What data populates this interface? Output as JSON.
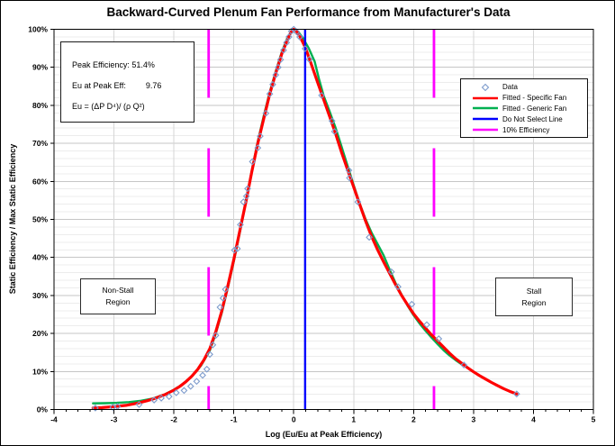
{
  "chart_data": {
    "type": "line",
    "title": "Backward-Curved Plenum Fan Performance from Manufacturer's Data",
    "xlabel": "Log (Eu/Eu at Peak Efficiency)",
    "ylabel": "Static Efficiency / Max Static Efficiency",
    "xlim": [
      -4,
      5
    ],
    "ylim_pct": [
      0,
      100
    ],
    "x_ticks": [
      -4,
      -3,
      -2,
      -1,
      0,
      1,
      2,
      3,
      4,
      5
    ],
    "y_ticks_pct": [
      "0%",
      "10%",
      "20%",
      "30%",
      "40%",
      "50%",
      "60%",
      "70%",
      "80%",
      "90%",
      "100%"
    ],
    "grid": {
      "major_y_step_pct": 10,
      "minor_y_step_pct": 2,
      "major_x_step": 1,
      "legend_position": "right-inside"
    },
    "colors": {
      "specific_fan": "#FF0000",
      "generic_fan": "#00B050",
      "do_not_select": "#0000FF",
      "efficiency_10pct": "#FF00FF",
      "data_marker": "#7D9BCC",
      "major_grid": "#C6C6C6",
      "minor_grid": "#ECECEC",
      "vertical_grid": "#D6D6D6",
      "plot_border": "#000000"
    },
    "legend": {
      "entries": [
        {
          "label": "Data",
          "type": "marker",
          "color": "#7D9BCC"
        },
        {
          "label": "Fitted - Specific Fan",
          "type": "line",
          "color": "#FF0000"
        },
        {
          "label": "Fitted - Generic Fan",
          "type": "line",
          "color": "#00B050"
        },
        {
          "label": "Do Not Select Line",
          "type": "line",
          "color": "#0000FF"
        },
        {
          "label": "10% Efficiency",
          "type": "line",
          "color": "#FF00FF"
        }
      ]
    },
    "vertical_lines": {
      "do_not_select_x": 0.19,
      "efficiency_10pct_x": [
        -1.42,
        2.34
      ]
    },
    "series": {
      "data_points": [
        [
          -3.31,
          0.4
        ],
        [
          -3.02,
          0.6
        ],
        [
          -2.94,
          0.8
        ],
        [
          -2.58,
          1.3
        ],
        [
          -2.33,
          2.5
        ],
        [
          -2.21,
          3.0
        ],
        [
          -2.08,
          3.4
        ],
        [
          -1.96,
          4.4
        ],
        [
          -1.83,
          5.0
        ],
        [
          -1.72,
          6.1
        ],
        [
          -1.62,
          7.4
        ],
        [
          -1.52,
          9.0
        ],
        [
          -1.45,
          10.6
        ],
        [
          -1.4,
          14.5
        ],
        [
          -1.35,
          17.0
        ],
        [
          -1.3,
          19.5
        ],
        [
          -1.23,
          26.9
        ],
        [
          -1.18,
          29.3
        ],
        [
          -1.14,
          31.6
        ],
        [
          -0.99,
          41.9
        ],
        [
          -0.94,
          42.3
        ],
        [
          -0.89,
          48.6
        ],
        [
          -0.84,
          54.6
        ],
        [
          -0.79,
          56.1
        ],
        [
          -0.77,
          58.1
        ],
        [
          -0.69,
          65.2
        ],
        [
          -0.6,
          68.8
        ],
        [
          -0.56,
          71.9
        ],
        [
          -0.465,
          77.9
        ],
        [
          -0.4,
          83.0
        ],
        [
          -0.35,
          85.5
        ],
        [
          -0.3,
          88.0
        ],
        [
          -0.26,
          90.0
        ],
        [
          -0.22,
          92.0
        ],
        [
          -0.17,
          94.5
        ],
        [
          -0.12,
          96.5
        ],
        [
          -0.08,
          98.0
        ],
        [
          -0.04,
          99.5
        ],
        [
          0.0,
          100.0
        ],
        [
          0.05,
          99.3
        ],
        [
          0.1,
          98.0
        ],
        [
          0.19,
          94.9
        ],
        [
          0.26,
          92.1
        ],
        [
          0.465,
          82.6
        ],
        [
          0.64,
          75.9
        ],
        [
          0.68,
          73.1
        ],
        [
          0.92,
          62.9
        ],
        [
          0.93,
          60.9
        ],
        [
          1.07,
          54.6
        ],
        [
          1.26,
          45.3
        ],
        [
          1.63,
          36.2
        ],
        [
          1.74,
          32.3
        ],
        [
          1.97,
          27.7
        ],
        [
          2.22,
          22.3
        ],
        [
          2.42,
          18.6
        ],
        [
          2.84,
          11.7
        ],
        [
          3.72,
          4.1
        ]
      ],
      "fitted_specific_fan": [
        [
          -3.35,
          0.4
        ],
        [
          -3.2,
          0.5
        ],
        [
          -3.0,
          0.75
        ],
        [
          -2.8,
          1.1
        ],
        [
          -2.6,
          1.7
        ],
        [
          -2.45,
          2.3
        ],
        [
          -2.3,
          3.0
        ],
        [
          -2.15,
          3.9
        ],
        [
          -2.0,
          5.1
        ],
        [
          -1.9,
          6.1
        ],
        [
          -1.8,
          7.3
        ],
        [
          -1.7,
          8.8
        ],
        [
          -1.6,
          10.6
        ],
        [
          -1.5,
          13.0
        ],
        [
          -1.4,
          16.0
        ],
        [
          -1.3,
          20.5
        ],
        [
          -1.2,
          26.0
        ],
        [
          -1.1,
          32.5
        ],
        [
          -1.0,
          39.5
        ],
        [
          -0.9,
          47.0
        ],
        [
          -0.8,
          54.5
        ],
        [
          -0.7,
          62.5
        ],
        [
          -0.6,
          70.0
        ],
        [
          -0.5,
          76.5
        ],
        [
          -0.4,
          83.0
        ],
        [
          -0.3,
          88.5
        ],
        [
          -0.2,
          93.5
        ],
        [
          -0.1,
          97.5
        ],
        [
          -0.05,
          99.2
        ],
        [
          0.0,
          100.0
        ],
        [
          0.05,
          99.4
        ],
        [
          0.1,
          98.2
        ],
        [
          0.2,
          95.0
        ],
        [
          0.3,
          90.5
        ],
        [
          0.4,
          86.0
        ],
        [
          0.5,
          81.5
        ],
        [
          0.6,
          77.0
        ],
        [
          0.7,
          72.5
        ],
        [
          0.8,
          67.5
        ],
        [
          0.9,
          63.0
        ],
        [
          1.0,
          58.5
        ],
        [
          1.1,
          54.0
        ],
        [
          1.2,
          49.5
        ],
        [
          1.3,
          45.5
        ],
        [
          1.4,
          42.0
        ],
        [
          1.5,
          38.8
        ],
        [
          1.6,
          35.8
        ],
        [
          1.7,
          32.8
        ],
        [
          1.8,
          30.0
        ],
        [
          1.9,
          27.5
        ],
        [
          2.0,
          25.2
        ],
        [
          2.1,
          23.2
        ],
        [
          2.2,
          21.4
        ],
        [
          2.3,
          19.6
        ],
        [
          2.4,
          18.0
        ],
        [
          2.5,
          16.4
        ],
        [
          2.6,
          14.8
        ],
        [
          2.7,
          13.4
        ],
        [
          2.8,
          12.2
        ],
        [
          2.9,
          11.0
        ],
        [
          3.0,
          9.9
        ],
        [
          3.1,
          8.9
        ],
        [
          3.2,
          8.0
        ],
        [
          3.3,
          7.1
        ],
        [
          3.4,
          6.3
        ],
        [
          3.5,
          5.5
        ],
        [
          3.6,
          4.8
        ],
        [
          3.72,
          4.1
        ]
      ],
      "fitted_generic_fan": [
        [
          -3.35,
          1.6
        ],
        [
          -3.15,
          1.65
        ],
        [
          -2.95,
          1.75
        ],
        [
          -2.75,
          1.95
        ],
        [
          -2.55,
          2.3
        ],
        [
          -2.35,
          2.9
        ],
        [
          -2.15,
          4.0
        ],
        [
          -2.0,
          5.2
        ],
        [
          -1.85,
          6.7
        ],
        [
          -1.7,
          8.7
        ],
        [
          -1.55,
          11.5
        ],
        [
          -1.4,
          15.5
        ],
        [
          -1.3,
          20.0
        ],
        [
          -1.2,
          25.5
        ],
        [
          -1.1,
          32.0
        ],
        [
          -1.0,
          39.0
        ],
        [
          -0.9,
          46.5
        ],
        [
          -0.8,
          54.5
        ],
        [
          -0.7,
          62.8
        ],
        [
          -0.6,
          70.5
        ],
        [
          -0.5,
          77.2
        ],
        [
          -0.4,
          83.5
        ],
        [
          -0.3,
          89.0
        ],
        [
          -0.2,
          94.0
        ],
        [
          -0.1,
          98.0
        ],
        [
          0.0,
          100.0
        ],
        [
          0.08,
          99.2
        ],
        [
          0.15,
          97.8
        ],
        [
          0.25,
          95.0
        ],
        [
          0.35,
          91.5
        ],
        [
          0.42,
          87.0
        ],
        [
          0.5,
          82.5
        ],
        [
          0.6,
          78.3
        ],
        [
          0.7,
          74.0
        ],
        [
          0.8,
          69.0
        ],
        [
          0.9,
          64.0
        ],
        [
          1.0,
          59.0
        ],
        [
          1.1,
          54.2
        ],
        [
          1.2,
          50.0
        ],
        [
          1.3,
          46.5
        ],
        [
          1.4,
          43.5
        ],
        [
          1.5,
          40.5
        ],
        [
          1.6,
          36.8
        ],
        [
          1.7,
          33.2
        ],
        [
          1.8,
          30.2
        ],
        [
          1.9,
          27.3
        ],
        [
          2.0,
          24.8
        ],
        [
          2.1,
          22.6
        ],
        [
          2.2,
          20.7
        ],
        [
          2.3,
          18.9
        ],
        [
          2.4,
          17.2
        ],
        [
          2.5,
          15.6
        ],
        [
          2.6,
          14.2
        ],
        [
          2.7,
          13.0
        ],
        [
          2.8,
          11.9
        ]
      ]
    },
    "annotations": {
      "info_box": {
        "line1": "Peak Efficiency: 51.4%",
        "line2_label": "Eu at Peak Eff:",
        "line2_value": "9.76",
        "line3": "Eu = (ΔP D⁴)/ (ρ Q²)"
      },
      "non_stall": [
        "Non-Stall",
        "Region"
      ],
      "stall": [
        "Stall",
        "Region"
      ]
    }
  }
}
